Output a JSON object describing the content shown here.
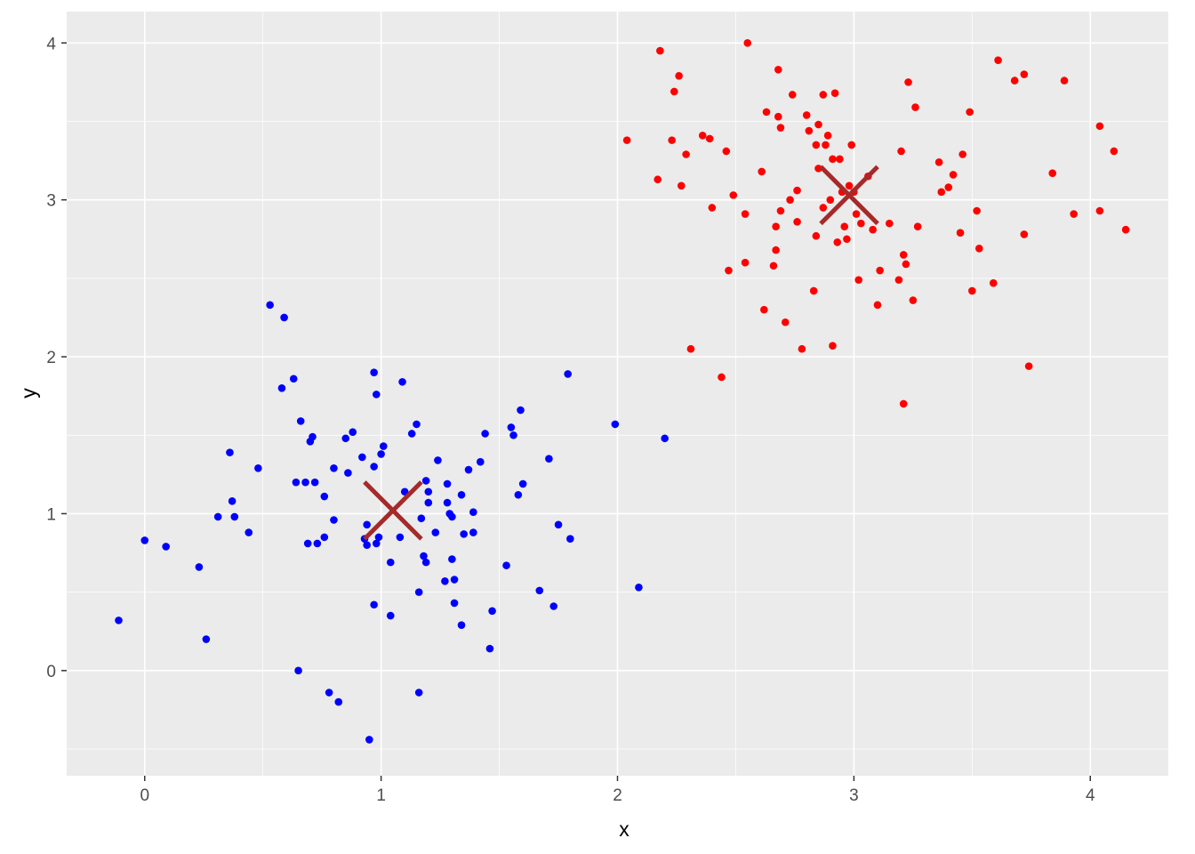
{
  "chart_data": {
    "type": "scatter",
    "title": "",
    "xlabel": "x",
    "ylabel": "y",
    "xlim": [
      -0.33,
      4.33
    ],
    "ylim": [
      -0.67,
      4.2
    ],
    "x_ticks": [
      0,
      1,
      2,
      3,
      4
    ],
    "y_ticks": [
      0,
      1,
      2,
      3,
      4
    ],
    "x_tick_labels": [
      "0",
      "1",
      "2",
      "3",
      "4"
    ],
    "y_tick_labels": [
      "0",
      "1",
      "2",
      "3",
      "4"
    ],
    "grid": true,
    "legend": "none",
    "colors": {
      "panel_background": "#ebebeb",
      "grid_line": "#ffffff",
      "cluster_1": "#0000ff",
      "cluster_2": "#ff0000",
      "centroid": "#a52a2a"
    },
    "series": [
      {
        "color": "#0000ff",
        "points": [
          [
            -0.11,
            0.32
          ],
          [
            0.0,
            0.83
          ],
          [
            0.09,
            0.79
          ],
          [
            0.23,
            0.66
          ],
          [
            0.26,
            0.2
          ],
          [
            0.31,
            0.98
          ],
          [
            0.36,
            1.39
          ],
          [
            0.37,
            1.08
          ],
          [
            0.38,
            0.98
          ],
          [
            0.44,
            0.88
          ],
          [
            0.48,
            1.29
          ],
          [
            0.53,
            2.33
          ],
          [
            0.58,
            1.8
          ],
          [
            0.59,
            2.25
          ],
          [
            0.63,
            1.86
          ],
          [
            0.64,
            1.2
          ],
          [
            0.65,
            0.0
          ],
          [
            0.66,
            1.59
          ],
          [
            0.68,
            1.2
          ],
          [
            0.69,
            0.81
          ],
          [
            0.7,
            1.46
          ],
          [
            0.71,
            1.49
          ],
          [
            0.72,
            1.2
          ],
          [
            0.73,
            0.81
          ],
          [
            0.76,
            0.85
          ],
          [
            0.76,
            1.11
          ],
          [
            0.78,
            -0.14
          ],
          [
            0.8,
            0.96
          ],
          [
            0.8,
            1.29
          ],
          [
            0.82,
            -0.2
          ],
          [
            0.85,
            1.48
          ],
          [
            0.86,
            1.26
          ],
          [
            0.88,
            1.52
          ],
          [
            0.92,
            1.36
          ],
          [
            0.93,
            0.84
          ],
          [
            0.94,
            0.8
          ],
          [
            0.94,
            0.93
          ],
          [
            0.95,
            -0.44
          ],
          [
            0.97,
            1.9
          ],
          [
            0.97,
            1.3
          ],
          [
            0.97,
            0.42
          ],
          [
            0.98,
            1.76
          ],
          [
            0.98,
            0.81
          ],
          [
            0.99,
            0.85
          ],
          [
            1.0,
            1.38
          ],
          [
            1.01,
            1.43
          ],
          [
            1.04,
            0.69
          ],
          [
            1.04,
            0.35
          ],
          [
            1.08,
            0.85
          ],
          [
            1.09,
            1.84
          ],
          [
            1.1,
            1.14
          ],
          [
            1.13,
            1.51
          ],
          [
            1.15,
            1.57
          ],
          [
            1.16,
            0.5
          ],
          [
            1.16,
            -0.14
          ],
          [
            1.17,
            0.97
          ],
          [
            1.18,
            0.73
          ],
          [
            1.19,
            1.21
          ],
          [
            1.19,
            0.69
          ],
          [
            1.2,
            1.07
          ],
          [
            1.2,
            1.14
          ],
          [
            1.23,
            0.88
          ],
          [
            1.24,
            1.34
          ],
          [
            1.27,
            0.57
          ],
          [
            1.28,
            1.07
          ],
          [
            1.28,
            1.19
          ],
          [
            1.29,
            1.0
          ],
          [
            1.3,
            0.71
          ],
          [
            1.3,
            0.98
          ],
          [
            1.31,
            0.58
          ],
          [
            1.31,
            0.43
          ],
          [
            1.34,
            1.12
          ],
          [
            1.34,
            0.29
          ],
          [
            1.35,
            0.87
          ],
          [
            1.37,
            1.28
          ],
          [
            1.39,
            1.01
          ],
          [
            1.39,
            0.88
          ],
          [
            1.42,
            1.33
          ],
          [
            1.44,
            1.51
          ],
          [
            1.46,
            0.14
          ],
          [
            1.47,
            0.38
          ],
          [
            1.53,
            0.67
          ],
          [
            1.55,
            1.55
          ],
          [
            1.56,
            1.5
          ],
          [
            1.58,
            1.12
          ],
          [
            1.59,
            1.66
          ],
          [
            1.6,
            1.19
          ],
          [
            1.67,
            0.51
          ],
          [
            1.71,
            1.35
          ],
          [
            1.73,
            0.41
          ],
          [
            1.75,
            0.93
          ],
          [
            1.79,
            1.89
          ],
          [
            1.8,
            0.84
          ],
          [
            1.99,
            1.57
          ],
          [
            2.09,
            0.53
          ],
          [
            2.2,
            1.48
          ]
        ]
      },
      {
        "color": "#ff0000",
        "points": [
          [
            2.04,
            3.38
          ],
          [
            2.17,
            3.13
          ],
          [
            2.18,
            3.95
          ],
          [
            2.23,
            3.38
          ],
          [
            2.24,
            3.69
          ],
          [
            2.26,
            3.79
          ],
          [
            2.27,
            3.09
          ],
          [
            2.29,
            3.29
          ],
          [
            2.31,
            2.05
          ],
          [
            2.36,
            3.41
          ],
          [
            2.39,
            3.39
          ],
          [
            2.4,
            2.95
          ],
          [
            2.44,
            1.87
          ],
          [
            2.46,
            3.31
          ],
          [
            2.47,
            2.55
          ],
          [
            2.49,
            3.03
          ],
          [
            2.54,
            2.91
          ],
          [
            2.54,
            2.6
          ],
          [
            2.55,
            4.0
          ],
          [
            2.61,
            3.18
          ],
          [
            2.62,
            2.3
          ],
          [
            2.63,
            3.56
          ],
          [
            2.66,
            2.58
          ],
          [
            2.67,
            2.68
          ],
          [
            2.67,
            2.83
          ],
          [
            2.68,
            3.83
          ],
          [
            2.68,
            3.53
          ],
          [
            2.69,
            2.93
          ],
          [
            2.69,
            3.46
          ],
          [
            2.71,
            2.22
          ],
          [
            2.73,
            3.0
          ],
          [
            2.74,
            3.67
          ],
          [
            2.76,
            3.06
          ],
          [
            2.76,
            2.86
          ],
          [
            2.78,
            2.05
          ],
          [
            2.8,
            3.54
          ],
          [
            2.81,
            3.44
          ],
          [
            2.83,
            2.42
          ],
          [
            2.84,
            3.35
          ],
          [
            2.84,
            2.77
          ],
          [
            2.85,
            3.2
          ],
          [
            2.85,
            3.48
          ],
          [
            2.87,
            2.95
          ],
          [
            2.87,
            3.67
          ],
          [
            2.88,
            3.35
          ],
          [
            2.89,
            3.41
          ],
          [
            2.9,
            3.0
          ],
          [
            2.91,
            2.07
          ],
          [
            2.91,
            3.26
          ],
          [
            2.92,
            3.68
          ],
          [
            2.93,
            2.73
          ],
          [
            2.94,
            3.26
          ],
          [
            2.95,
            3.05
          ],
          [
            2.96,
            2.83
          ],
          [
            2.97,
            2.75
          ],
          [
            2.98,
            3.09
          ],
          [
            2.99,
            3.35
          ],
          [
            3.0,
            3.05
          ],
          [
            3.01,
            2.91
          ],
          [
            3.02,
            2.49
          ],
          [
            3.03,
            2.85
          ],
          [
            3.06,
            3.15
          ],
          [
            3.08,
            2.81
          ],
          [
            3.1,
            2.33
          ],
          [
            3.11,
            2.55
          ],
          [
            3.15,
            2.85
          ],
          [
            3.19,
            2.49
          ],
          [
            3.2,
            3.31
          ],
          [
            3.21,
            2.65
          ],
          [
            3.21,
            1.7
          ],
          [
            3.22,
            2.59
          ],
          [
            3.23,
            3.75
          ],
          [
            3.25,
            2.36
          ],
          [
            3.26,
            3.59
          ],
          [
            3.27,
            2.83
          ],
          [
            3.36,
            3.24
          ],
          [
            3.37,
            3.05
          ],
          [
            3.4,
            3.08
          ],
          [
            3.42,
            3.16
          ],
          [
            3.45,
            2.79
          ],
          [
            3.46,
            3.29
          ],
          [
            3.49,
            3.56
          ],
          [
            3.5,
            2.42
          ],
          [
            3.52,
            2.93
          ],
          [
            3.53,
            2.69
          ],
          [
            3.59,
            2.47
          ],
          [
            3.61,
            3.89
          ],
          [
            3.68,
            3.76
          ],
          [
            3.72,
            2.78
          ],
          [
            3.72,
            3.8
          ],
          [
            3.74,
            1.94
          ],
          [
            3.84,
            3.17
          ],
          [
            3.89,
            3.76
          ],
          [
            3.93,
            2.91
          ],
          [
            4.04,
            2.93
          ],
          [
            4.04,
            3.47
          ],
          [
            4.1,
            3.31
          ],
          [
            4.15,
            2.81
          ]
        ]
      }
    ],
    "centroids": [
      {
        "x": 1.05,
        "y": 1.02
      },
      {
        "x": 2.98,
        "y": 3.03
      }
    ]
  }
}
